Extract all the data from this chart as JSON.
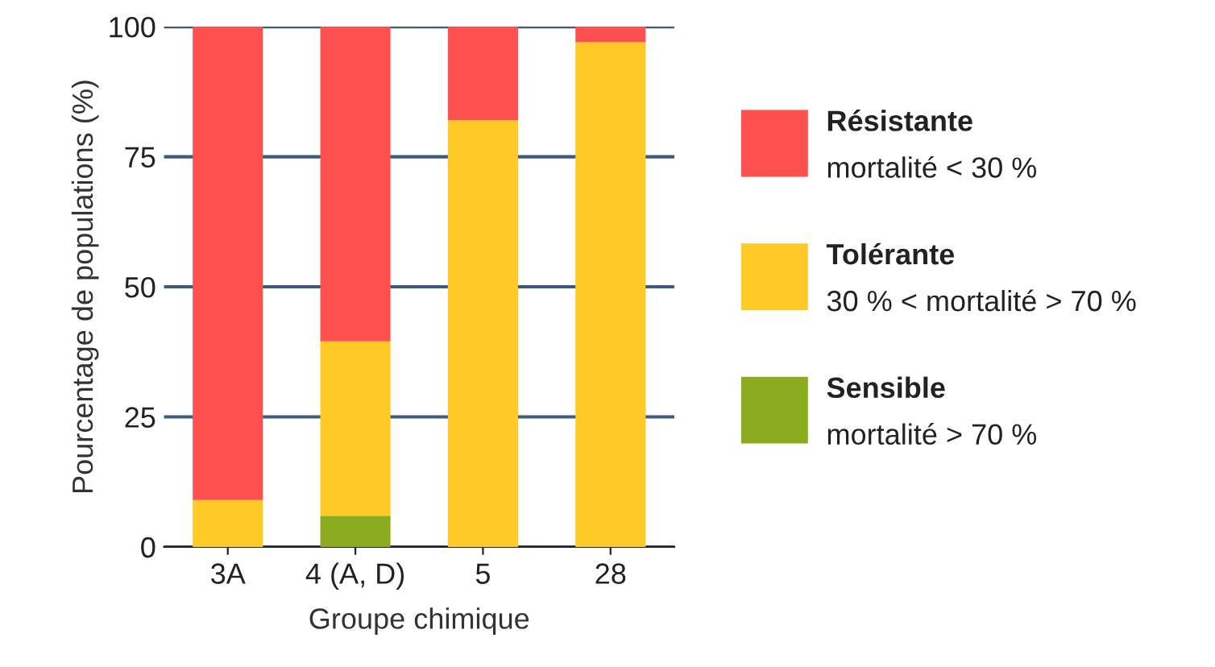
{
  "chart_data": {
    "type": "bar",
    "stacked": true,
    "xlabel": "Groupe chimique",
    "ylabel": "Pourcentage de populations (%)",
    "categories": [
      "3A",
      "4 (A, D)",
      "5",
      "28"
    ],
    "series": [
      {
        "name": "Sensible\nmortalité > 70 %",
        "color": "#8aac1e",
        "values": [
          0,
          6,
          0,
          0
        ]
      },
      {
        "name": "Tolérante\n30 % < mortalité > 70 %",
        "color": "#ffc926",
        "values": [
          9,
          33.5,
          82,
          97
        ]
      },
      {
        "name": "Résistante\nmortalité < 30 %",
        "color": "#ff5050",
        "values": [
          91,
          60.5,
          18,
          3
        ]
      }
    ],
    "ylim": [
      0,
      100
    ],
    "yticks": [
      0,
      25,
      50,
      75,
      100
    ],
    "grid": "y",
    "legend": "right"
  }
}
